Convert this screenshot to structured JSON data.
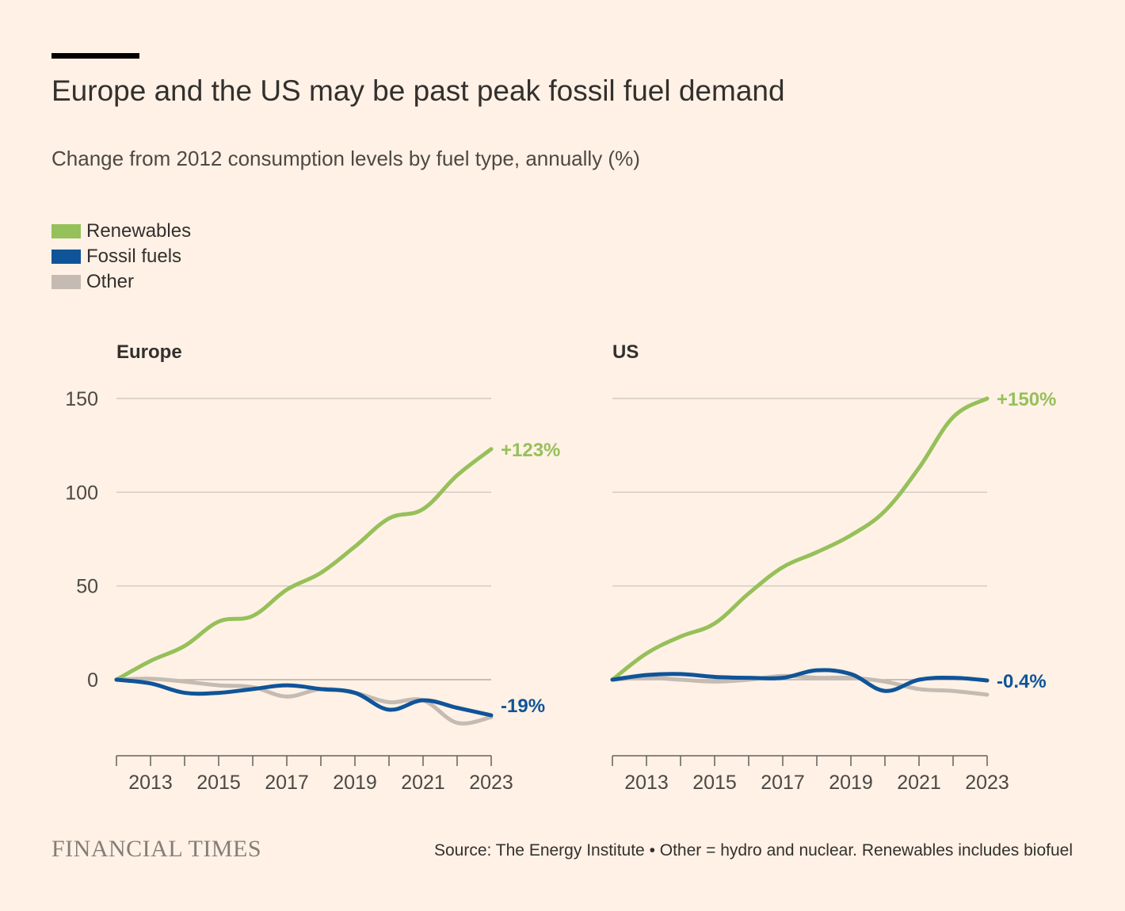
{
  "title": "Europe and the US may be past peak fossil fuel demand",
  "subtitle": "Change from 2012 consumption levels by fuel type, annually (%)",
  "legend": [
    {
      "label": "Renewables",
      "color": "#96c05a"
    },
    {
      "label": "Fossil fuels",
      "color": "#0f5499"
    },
    {
      "label": "Other",
      "color": "#c5bbb3"
    }
  ],
  "footer": {
    "logo": "FINANCIAL TIMES",
    "source": "Source: The Energy Institute • Other = hydro and nuclear. Renewables includes biofuel"
  },
  "chart_data": [
    {
      "type": "line",
      "title": "Europe",
      "xlabel": "",
      "ylabel": "",
      "x": [
        2012,
        2013,
        2014,
        2015,
        2016,
        2017,
        2018,
        2019,
        2020,
        2021,
        2022,
        2023
      ],
      "xticks": [
        "2013",
        "2015",
        "2017",
        "2019",
        "2021",
        "2023"
      ],
      "yticks": [
        "150",
        "100",
        "50",
        "0"
      ],
      "ylim": [
        -40,
        150
      ],
      "series": [
        {
          "name": "Other",
          "color": "#c5bbb3",
          "values": [
            0,
            0.5,
            -1,
            -3,
            -4,
            -9,
            -5,
            -7,
            -12,
            -11,
            -23,
            -20
          ]
        },
        {
          "name": "Renewables",
          "color": "#96c05a",
          "values": [
            0,
            10,
            18,
            31,
            34,
            48,
            57,
            71,
            86,
            91,
            109,
            123
          ],
          "end_label": "+123%"
        },
        {
          "name": "Fossil fuels",
          "color": "#0f5499",
          "values": [
            0,
            -2,
            -7,
            -7,
            -5,
            -3,
            -5,
            -7,
            -16,
            -11,
            -15,
            -19
          ],
          "end_label": "-19%"
        }
      ]
    },
    {
      "type": "line",
      "title": "US",
      "xlabel": "",
      "ylabel": "",
      "x": [
        2012,
        2013,
        2014,
        2015,
        2016,
        2017,
        2018,
        2019,
        2020,
        2021,
        2022,
        2023
      ],
      "xticks": [
        "2013",
        "2015",
        "2017",
        "2019",
        "2021",
        "2023"
      ],
      "yticks": [],
      "ylim": [
        -40,
        150
      ],
      "series": [
        {
          "name": "Other",
          "color": "#c5bbb3",
          "values": [
            0,
            1,
            0,
            -1,
            0,
            2,
            1,
            1,
            -1,
            -5,
            -6,
            -8
          ]
        },
        {
          "name": "Renewables",
          "color": "#96c05a",
          "values": [
            0,
            14,
            23,
            30,
            46,
            60,
            68,
            77,
            90,
            113,
            140,
            150
          ],
          "end_label": "+150%"
        },
        {
          "name": "Fossil fuels",
          "color": "#0f5499",
          "values": [
            0,
            2.5,
            3,
            1.5,
            1,
            1,
            5,
            3,
            -6,
            0,
            1,
            -0.4
          ],
          "end_label": "-0.4%"
        }
      ]
    }
  ]
}
